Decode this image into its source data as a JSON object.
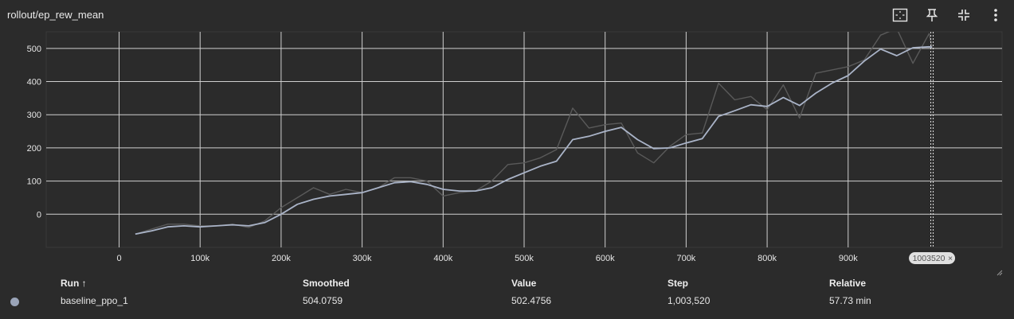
{
  "title": "rollout/ep_rew_mean",
  "toolbar": {
    "icons": [
      "fit-domain-icon",
      "pin-icon",
      "collapse-icon",
      "more-vert-icon"
    ]
  },
  "chart_data": {
    "type": "line",
    "xlim": [
      -90000,
      1090000
    ],
    "ylim": [
      -100,
      550
    ],
    "x_ticks": [
      {
        "v": 0,
        "label": "0"
      },
      {
        "v": 100000,
        "label": "100k"
      },
      {
        "v": 200000,
        "label": "200k"
      },
      {
        "v": 300000,
        "label": "300k"
      },
      {
        "v": 400000,
        "label": "400k"
      },
      {
        "v": 500000,
        "label": "500k"
      },
      {
        "v": 600000,
        "label": "600k"
      },
      {
        "v": 700000,
        "label": "700k"
      },
      {
        "v": 800000,
        "label": "800k"
      },
      {
        "v": 900000,
        "label": "900k"
      }
    ],
    "y_ticks": [
      {
        "v": 0,
        "label": "0"
      },
      {
        "v": 100,
        "label": "100"
      },
      {
        "v": 200,
        "label": "200"
      },
      {
        "v": 300,
        "label": "300"
      },
      {
        "v": 400,
        "label": "400"
      },
      {
        "v": 500,
        "label": "500"
      }
    ],
    "grid": true,
    "hover_step": 1003520,
    "hover_label": "1003520",
    "series": [
      {
        "color": "#5a5a5a",
        "points": [
          [
            20000,
            -60
          ],
          [
            40000,
            -45
          ],
          [
            60000,
            -30
          ],
          [
            80000,
            -30
          ],
          [
            100000,
            -35
          ],
          [
            120000,
            -35
          ],
          [
            140000,
            -30
          ],
          [
            160000,
            -40
          ],
          [
            180000,
            -20
          ],
          [
            200000,
            20
          ],
          [
            220000,
            50
          ],
          [
            240000,
            80
          ],
          [
            260000,
            60
          ],
          [
            280000,
            75
          ],
          [
            300000,
            65
          ],
          [
            320000,
            80
          ],
          [
            340000,
            110
          ],
          [
            360000,
            110
          ],
          [
            380000,
            100
          ],
          [
            400000,
            55
          ],
          [
            420000,
            65
          ],
          [
            440000,
            70
          ],
          [
            460000,
            100
          ],
          [
            480000,
            150
          ],
          [
            500000,
            155
          ],
          [
            520000,
            170
          ],
          [
            540000,
            195
          ],
          [
            560000,
            320
          ],
          [
            580000,
            260
          ],
          [
            600000,
            270
          ],
          [
            620000,
            275
          ],
          [
            640000,
            185
          ],
          [
            660000,
            155
          ],
          [
            680000,
            205
          ],
          [
            700000,
            240
          ],
          [
            720000,
            245
          ],
          [
            740000,
            395
          ],
          [
            760000,
            345
          ],
          [
            780000,
            355
          ],
          [
            800000,
            315
          ],
          [
            820000,
            390
          ],
          [
            840000,
            290
          ],
          [
            860000,
            425
          ],
          [
            880000,
            435
          ],
          [
            900000,
            445
          ],
          [
            920000,
            465
          ],
          [
            940000,
            540
          ],
          [
            960000,
            560
          ],
          [
            980000,
            455
          ],
          [
            1000000,
            545
          ],
          [
            1003520,
            502.4756
          ]
        ]
      },
      {
        "color": "#aab4c8",
        "points": [
          [
            20000,
            -60
          ],
          [
            40000,
            -50
          ],
          [
            60000,
            -38
          ],
          [
            80000,
            -35
          ],
          [
            100000,
            -38
          ],
          [
            120000,
            -35
          ],
          [
            140000,
            -32
          ],
          [
            160000,
            -35
          ],
          [
            180000,
            -25
          ],
          [
            200000,
            0
          ],
          [
            220000,
            30
          ],
          [
            240000,
            45
          ],
          [
            260000,
            55
          ],
          [
            280000,
            60
          ],
          [
            300000,
            65
          ],
          [
            320000,
            80
          ],
          [
            340000,
            95
          ],
          [
            360000,
            98
          ],
          [
            380000,
            90
          ],
          [
            400000,
            75
          ],
          [
            420000,
            70
          ],
          [
            440000,
            70
          ],
          [
            460000,
            80
          ],
          [
            480000,
            105
          ],
          [
            500000,
            125
          ],
          [
            520000,
            145
          ],
          [
            540000,
            160
          ],
          [
            560000,
            225
          ],
          [
            580000,
            235
          ],
          [
            600000,
            250
          ],
          [
            620000,
            262
          ],
          [
            640000,
            225
          ],
          [
            660000,
            198
          ],
          [
            680000,
            200
          ],
          [
            700000,
            215
          ],
          [
            720000,
            228
          ],
          [
            740000,
            295
          ],
          [
            760000,
            312
          ],
          [
            780000,
            330
          ],
          [
            800000,
            325
          ],
          [
            820000,
            352
          ],
          [
            840000,
            328
          ],
          [
            860000,
            365
          ],
          [
            880000,
            395
          ],
          [
            900000,
            418
          ],
          [
            920000,
            462
          ],
          [
            940000,
            498
          ],
          [
            960000,
            478
          ],
          [
            980000,
            502
          ],
          [
            1000000,
            505
          ],
          [
            1003520,
            504.0759
          ]
        ]
      }
    ]
  },
  "table": {
    "headers": {
      "run": "Run ↑",
      "smoothed": "Smoothed",
      "value": "Value",
      "step": "Step",
      "relative": "Relative"
    },
    "row": {
      "run": "baseline_ppo_1",
      "smoothed": "504.0759",
      "value": "502.4756",
      "step": "1,003,520",
      "relative": "57.73 min",
      "color": "#9aa4b8"
    }
  }
}
